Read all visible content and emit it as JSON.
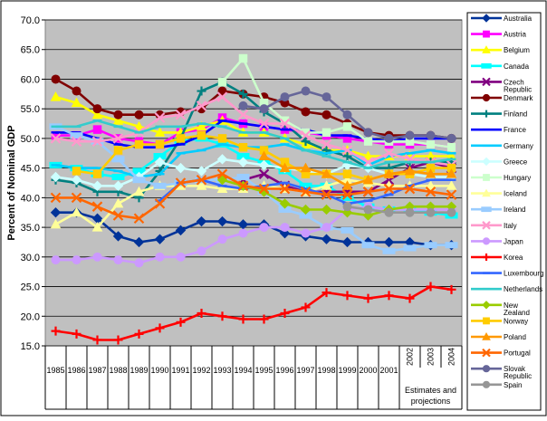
{
  "chart_data": {
    "type": "line",
    "title": "",
    "xlabel": "",
    "ylabel": "Percent of Nominal GDP",
    "ylim": [
      15.0,
      70.0
    ],
    "yticks": [
      "15.0",
      "20.0",
      "25.0",
      "30.0",
      "35.0",
      "40.0",
      "45.0",
      "50.0",
      "55.0",
      "60.0",
      "65.0",
      "70.0"
    ],
    "categories": [
      "1985",
      "1986",
      "1987",
      "1988",
      "1989",
      "1990",
      "1991",
      "1992",
      "1993",
      "1994",
      "1995",
      "1996",
      "1997",
      "1998",
      "1999",
      "2000",
      "2001",
      "2002",
      "2003",
      "2004"
    ],
    "estimates_label": "Estimates and projections",
    "grid": true,
    "legend_position": "right",
    "series": [
      {
        "name": "Australia",
        "color": "#003399",
        "marker": "diamond",
        "values": [
          37.5,
          37.5,
          36.5,
          33.5,
          32.5,
          33,
          34.5,
          36,
          36,
          35.5,
          35.5,
          34,
          33.5,
          33,
          32.5,
          32.5,
          32.5,
          32.5,
          32,
          32
        ]
      },
      {
        "name": "Austria",
        "color": "#ff00ff",
        "marker": "square",
        "values": [
          50.5,
          50.5,
          51.5,
          50,
          49.5,
          49,
          51,
          51.5,
          53.5,
          52.5,
          52,
          51.5,
          51,
          50.5,
          50,
          49.5,
          49,
          49,
          49,
          48.5
        ]
      },
      {
        "name": "Belgium",
        "color": "#ffff00",
        "marker": "triangle",
        "values": [
          57,
          56,
          54,
          53,
          52,
          51,
          51,
          52,
          53,
          51,
          51,
          50,
          49,
          48,
          48,
          47,
          47,
          47,
          47,
          47
        ]
      },
      {
        "name": "Canada",
        "color": "#00ffff",
        "marker": "bar",
        "values": [
          45.5,
          45,
          44,
          43.5,
          44.5,
          47,
          49.5,
          50,
          49,
          47,
          46,
          44.5,
          42,
          42,
          40,
          38.5,
          38,
          38,
          37.5,
          37
        ]
      },
      {
        "name": "Czech Republic",
        "color": "#800080",
        "marker": "x",
        "values": [
          null,
          null,
          null,
          null,
          null,
          null,
          null,
          null,
          null,
          43,
          44,
          42,
          41,
          41,
          41,
          41,
          43,
          45,
          46,
          45
        ]
      },
      {
        "name": "Denmark",
        "color": "#800000",
        "marker": "circle",
        "values": [
          60,
          58,
          55,
          54,
          54,
          54,
          54.5,
          55,
          58,
          57.5,
          57,
          56,
          54.5,
          54,
          52.5,
          51,
          50.5,
          50.5,
          50.5,
          50
        ]
      },
      {
        "name": "Finland",
        "color": "#008080",
        "marker": "plus",
        "values": [
          43,
          42.5,
          41,
          41,
          40,
          44.5,
          50,
          58,
          59.5,
          57.5,
          54.5,
          52.5,
          49.5,
          48,
          47,
          45,
          45,
          46,
          46,
          46
        ]
      },
      {
        "name": "France",
        "color": "#0000ff",
        "marker": "dash",
        "values": [
          51,
          51,
          50,
          49,
          48.5,
          48.5,
          49,
          50.5,
          53,
          52.5,
          52,
          51.5,
          51.5,
          50.5,
          50.5,
          50,
          49.5,
          50,
          50,
          50
        ]
      },
      {
        "name": "Germany",
        "color": "#00ccff",
        "marker": "dash",
        "values": [
          45.5,
          45,
          45,
          44.5,
          43.5,
          44,
          47.5,
          48,
          49,
          48.5,
          48.5,
          49,
          48,
          47.5,
          48,
          45.5,
          47,
          47.5,
          48,
          47.5
        ]
      },
      {
        "name": "Greece",
        "color": "#ccffff",
        "marker": "diamond",
        "values": [
          43.5,
          43,
          42,
          42,
          43.5,
          46,
          45,
          44.5,
          46.5,
          46,
          45.5,
          45,
          44.5,
          44,
          45.5,
          45,
          44,
          44,
          43.5,
          43.5
        ]
      },
      {
        "name": "Hungary",
        "color": "#ccffcc",
        "marker": "square",
        "values": [
          null,
          null,
          null,
          null,
          null,
          null,
          null,
          null,
          59.5,
          63.5,
          56,
          53,
          51,
          51,
          52,
          49.5,
          49.5,
          49.5,
          49,
          48.5
        ]
      },
      {
        "name": "Iceland",
        "color": "#ffff99",
        "marker": "triangle",
        "values": [
          35.5,
          37.5,
          35,
          39,
          41,
          42,
          42,
          42,
          41.5,
          41.5,
          42,
          41.5,
          41,
          42,
          43,
          42.5,
          42,
          42,
          42,
          42
        ]
      },
      {
        "name": "Ireland",
        "color": "#99ccff",
        "marker": "bar",
        "values": [
          52,
          50.5,
          49.5,
          46.5,
          43,
          42,
          42.5,
          43,
          43,
          43.5,
          41,
          38,
          37,
          35,
          34.5,
          32,
          31,
          31.5,
          32,
          32
        ]
      },
      {
        "name": "Italy",
        "color": "#ff99cc",
        "marker": "x",
        "values": [
          50,
          49.5,
          49.5,
          50,
          51,
          53.5,
          54,
          55.5,
          57,
          54,
          52.5,
          52.5,
          50.5,
          49,
          48,
          46,
          47.5,
          46.5,
          46,
          45.5
        ]
      },
      {
        "name": "Japan",
        "color": "#cc99ff",
        "marker": "circle",
        "values": [
          29.5,
          29.5,
          30,
          29.5,
          29,
          30,
          30,
          31,
          33,
          34,
          35,
          35,
          34,
          35,
          38,
          38.5,
          38,
          38,
          38,
          38
        ]
      },
      {
        "name": "Korea",
        "color": "#ff0000",
        "marker": "plus",
        "values": [
          17.5,
          17,
          16,
          16,
          17,
          18,
          19,
          20.5,
          20,
          19.5,
          19.5,
          20.5,
          21.5,
          24,
          23.5,
          23,
          23.5,
          23,
          25,
          24.5
        ]
      },
      {
        "name": "Luxembourg",
        "color": "#3366ff",
        "marker": "dash",
        "values": [
          null,
          null,
          null,
          null,
          null,
          39.5,
          42.5,
          43,
          42,
          41.5,
          42,
          42.5,
          41.5,
          40.5,
          39,
          39.5,
          40.5,
          42,
          43,
          43
        ]
      },
      {
        "name": "Netherlands",
        "color": "#33cccc",
        "marker": "dash",
        "values": [
          52,
          52,
          53,
          52,
          51,
          52,
          52,
          52.5,
          52,
          51,
          51,
          50,
          48,
          47,
          46,
          45,
          46,
          46,
          46,
          46.5
        ]
      },
      {
        "name": "New Zealand",
        "color": "#99cc00",
        "marker": "diamond",
        "values": [
          null,
          null,
          null,
          null,
          null,
          null,
          null,
          null,
          43,
          42,
          41,
          39,
          38,
          38,
          37.5,
          37,
          38,
          38.5,
          38.5,
          38.5
        ]
      },
      {
        "name": "Norway",
        "color": "#ffcc00",
        "marker": "square",
        "values": [
          null,
          44.5,
          44,
          48,
          49,
          49,
          50,
          50.5,
          50,
          48.5,
          48,
          46,
          44,
          44,
          44,
          43,
          44,
          44,
          45,
          45
        ]
      },
      {
        "name": "Poland",
        "color": "#ff9900",
        "marker": "triangle",
        "values": [
          null,
          null,
          null,
          null,
          null,
          null,
          null,
          null,
          null,
          null,
          47,
          45,
          45,
          44,
          42,
          43,
          44,
          44.5,
          44,
          44
        ]
      },
      {
        "name": "Portugal",
        "color": "#ff6600",
        "marker": "x",
        "values": [
          40,
          40,
          38.5,
          37,
          36.5,
          39,
          42.5,
          43,
          44,
          42,
          41.5,
          41.5,
          41,
          40.5,
          40.5,
          41,
          41.5,
          41.5,
          41,
          40.5
        ]
      },
      {
        "name": "Slovak Republic",
        "color": "#666699",
        "marker": "circle",
        "values": [
          null,
          null,
          null,
          null,
          null,
          null,
          null,
          null,
          null,
          55.5,
          55,
          57,
          58,
          57,
          54,
          51,
          50,
          50.5,
          50.5,
          50
        ]
      },
      {
        "name": "Spain",
        "color": "#969696",
        "marker": "circle",
        "values": [
          null,
          null,
          null,
          null,
          null,
          null,
          null,
          null,
          null,
          null,
          null,
          null,
          null,
          null,
          38.5,
          38,
          37.5,
          37.5,
          37.5,
          37.5
        ]
      }
    ]
  }
}
